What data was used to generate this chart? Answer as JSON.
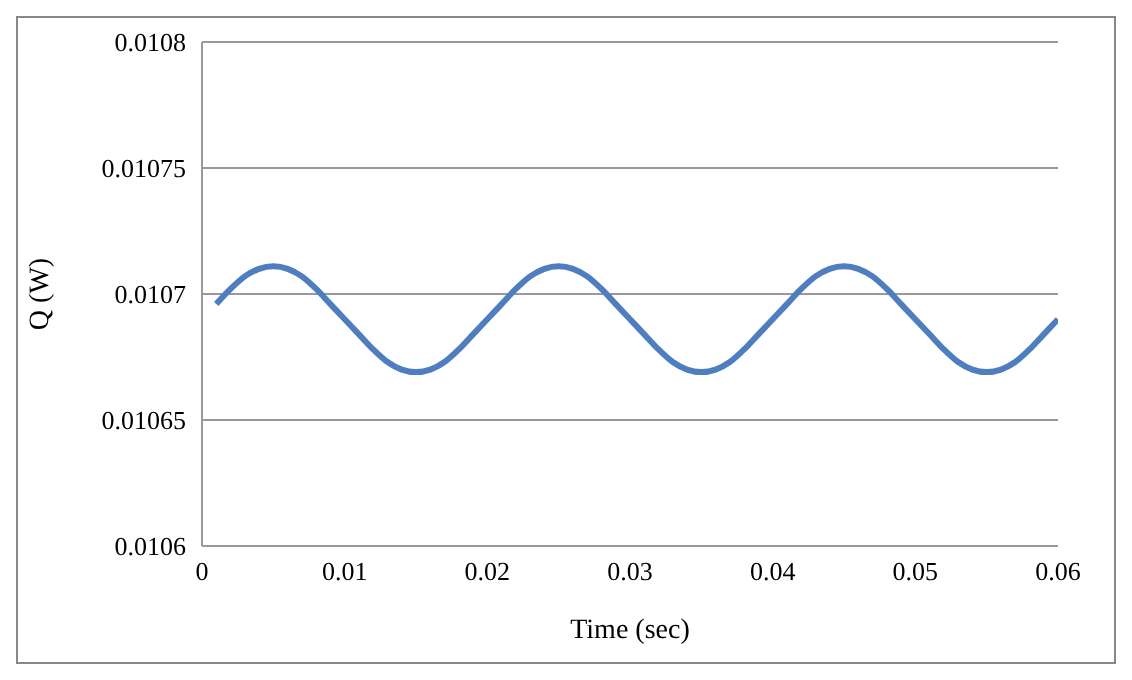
{
  "chart_data": {
    "type": "line",
    "xlabel": "Time (sec)",
    "ylabel": "Q (W)",
    "x": [
      0.001,
      0.002,
      0.003,
      0.004,
      0.005,
      0.006,
      0.007,
      0.008,
      0.009,
      0.01,
      0.011,
      0.012,
      0.013,
      0.014,
      0.015,
      0.016,
      0.017,
      0.018,
      0.019,
      0.02,
      0.021,
      0.022,
      0.023,
      0.024,
      0.025,
      0.026,
      0.027,
      0.028,
      0.029,
      0.03,
      0.031,
      0.032,
      0.033,
      0.034,
      0.035,
      0.036,
      0.037,
      0.038,
      0.039,
      0.04,
      0.041,
      0.042,
      0.043,
      0.044,
      0.045,
      0.046,
      0.047,
      0.048,
      0.049,
      0.05,
      0.051,
      0.052,
      0.053,
      0.054,
      0.055,
      0.056,
      0.057,
      0.058,
      0.059,
      0.06
    ],
    "series": [
      {
        "color": "#4f7ec0",
        "values": [
          0.010696,
          0.010702,
          0.010707,
          0.01071,
          0.010711,
          0.01071,
          0.010707,
          0.010702,
          0.010696,
          0.01069,
          0.010684,
          0.010678,
          0.010673,
          0.01067,
          0.010669,
          0.01067,
          0.010673,
          0.010678,
          0.010684,
          0.01069,
          0.010696,
          0.010702,
          0.010707,
          0.01071,
          0.010711,
          0.01071,
          0.010707,
          0.010702,
          0.010696,
          0.01069,
          0.010684,
          0.010678,
          0.010673,
          0.01067,
          0.010669,
          0.01067,
          0.010673,
          0.010678,
          0.010684,
          0.01069,
          0.010696,
          0.010702,
          0.010707,
          0.01071,
          0.010711,
          0.01071,
          0.010707,
          0.010702,
          0.010696,
          0.01069,
          0.010684,
          0.010678,
          0.010673,
          0.01067,
          0.010669,
          0.01067,
          0.010673,
          0.010678,
          0.010684,
          0.01069
        ]
      }
    ],
    "xlim": [
      0,
      0.06
    ],
    "xticks": [
      0,
      0.01,
      0.02,
      0.03,
      0.04,
      0.05,
      0.06
    ],
    "ylim": [
      0.0106,
      0.0108
    ],
    "yticks": [
      0.0106,
      0.01065,
      0.0107,
      0.01075,
      0.0108
    ],
    "grid": "y",
    "legend": false,
    "marker": "none",
    "line_style": "solid"
  }
}
